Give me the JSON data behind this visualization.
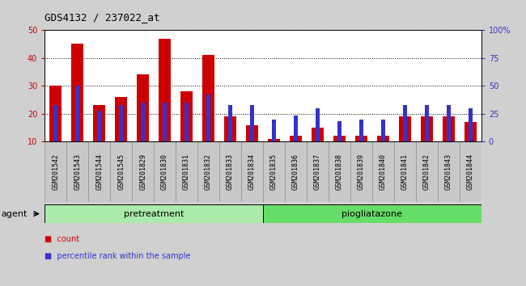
{
  "title": "GDS4132 / 237022_at",
  "samples": [
    "GSM201542",
    "GSM201543",
    "GSM201544",
    "GSM201545",
    "GSM201829",
    "GSM201830",
    "GSM201831",
    "GSM201832",
    "GSM201833",
    "GSM201834",
    "GSM201835",
    "GSM201836",
    "GSM201837",
    "GSM201838",
    "GSM201839",
    "GSM201840",
    "GSM201841",
    "GSM201842",
    "GSM201843",
    "GSM201844"
  ],
  "count_values": [
    30,
    45,
    23,
    26,
    34,
    47,
    28,
    41,
    19,
    16,
    11,
    12,
    15,
    12,
    12,
    12,
    19,
    19,
    19,
    17
  ],
  "percentile_values": [
    33,
    50,
    28,
    33,
    35,
    35,
    35,
    42,
    33,
    33,
    20,
    23,
    30,
    18,
    20,
    20,
    33,
    33,
    33,
    30
  ],
  "count_color": "#cc0000",
  "percentile_color": "#3333cc",
  "ylim_left": [
    10,
    50
  ],
  "ylim_right": [
    0,
    100
  ],
  "yticks_left": [
    10,
    20,
    30,
    40,
    50
  ],
  "yticks_right": [
    0,
    25,
    50,
    75,
    100
  ],
  "yticklabels_right": [
    "0",
    "25",
    "50",
    "75",
    "100%"
  ],
  "pretreatment_n": 10,
  "pretreatment_label": "pretreatment",
  "piogliatazone_label": "piogliatazone",
  "pretreatment_color": "#aaeaaa",
  "piogliatazone_color": "#66dd66",
  "background_color": "#d0d0d0",
  "xtick_box_color": "#c8c8c8",
  "plot_bg": "#ffffff",
  "bar_width": 0.55,
  "blue_bar_width": 0.18,
  "title_fontsize": 9,
  "tick_fontsize": 7,
  "xtick_fontsize": 6,
  "group_label_fontsize": 8,
  "legend_fontsize": 7,
  "agent_label": "agent",
  "legend_count": "count",
  "legend_percentile": "percentile rank within the sample"
}
